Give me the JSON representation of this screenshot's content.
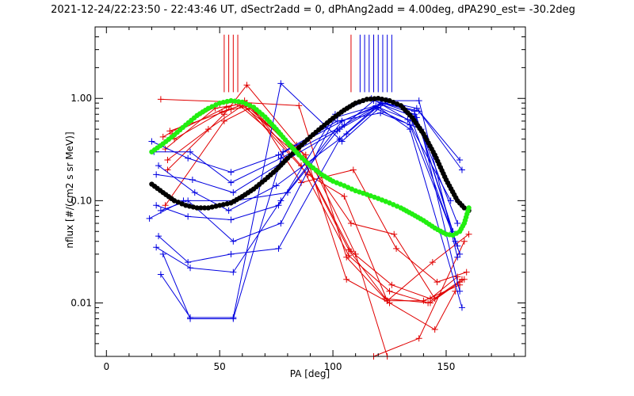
{
  "chart_data": {
    "type": "line",
    "title": "2021-12-24/22:23:50 - 22:43:46 UT, dSectr2add = 0, dPhAng2add = 4.00deg, dPA290_est= -30.2deg",
    "xlabel": "PA [deg]",
    "ylabel": "nflux [#/(cm2 s sr MeV)]",
    "xlim": [
      -5,
      185
    ],
    "ylim": [
      0.003,
      5.0
    ],
    "yscale": "log",
    "x_ticks": [
      0,
      50,
      100,
      150
    ],
    "x_tick_labels": [
      "0",
      "50",
      "100",
      "150"
    ],
    "y_ticks": [
      0.01,
      0.1,
      1.0
    ],
    "y_tick_labels": [
      "0.01",
      "0.10",
      "1.00"
    ],
    "grid": false,
    "colors": {
      "red": "#e00000",
      "blue": "#0000e0",
      "green": "#22ee11",
      "black": "#000000",
      "axes": "#000000"
    },
    "ref_lines": {
      "red": [
        52,
        54,
        56,
        58,
        108,
        118
      ],
      "blue": [
        112,
        114,
        116,
        118,
        120,
        122,
        124,
        126
      ],
      "y_from": 1.15,
      "y_to": 4.2
    },
    "red_series": [
      {
        "x": [
          24,
          57,
          85,
          106,
          123,
          143,
          156
        ],
        "y": [
          0.98,
          0.92,
          0.85,
          0.028,
          0.011,
          0.01,
          0.016
        ]
      },
      {
        "x": [
          25,
          50,
          61,
          86,
          107,
          125,
          142,
          157
        ],
        "y": [
          0.42,
          0.88,
          0.95,
          0.22,
          0.029,
          0.013,
          0.01,
          0.017
        ]
      },
      {
        "x": [
          26,
          48,
          62,
          87,
          108,
          126,
          143,
          155
        ],
        "y": [
          0.32,
          0.8,
          0.9,
          0.25,
          0.032,
          0.015,
          0.011,
          0.018
        ]
      },
      {
        "x": [
          27,
          45,
          60,
          88,
          106,
          125,
          145,
          154
        ],
        "y": [
          0.25,
          0.5,
          0.85,
          0.28,
          0.017,
          0.01,
          0.0055,
          0.013
        ]
      },
      {
        "x": [
          26,
          52,
          63,
          85,
          107,
          124,
          140,
          156
        ],
        "y": [
          0.09,
          0.6,
          0.8,
          0.3,
          0.033,
          0.0105,
          0.0105,
          0.015
        ]
      },
      {
        "x": [
          27,
          52,
          62,
          84,
          108,
          127,
          145,
          158
        ],
        "y": [
          0.2,
          0.7,
          1.35,
          0.35,
          0.06,
          0.047,
          0.011,
          0.017
        ]
      },
      {
        "x": [
          28,
          55,
          64,
          86,
          109,
          128,
          146,
          159
        ],
        "y": [
          0.48,
          0.78,
          0.85,
          0.15,
          0.2,
          0.034,
          0.016,
          0.02
        ]
      },
      {
        "x": [
          29,
          53,
          60,
          89,
          105,
          124,
          144,
          160
        ],
        "y": [
          0.45,
          0.82,
          0.9,
          0.18,
          0.11,
          0.0105,
          0.025,
          0.047
        ]
      },
      {
        "x": [
          30,
          51,
          59,
          92,
          110,
          124
        ],
        "y": [
          0.4,
          0.74,
          0.85,
          0.2,
          0.03,
          0.003
        ]
      },
      {
        "x": [
          118,
          138,
          158
        ],
        "y": [
          0.003,
          0.0045,
          0.04
        ]
      }
    ],
    "blue_series": [
      {
        "x": [
          20,
          36,
          55,
          76,
          104,
          122,
          136,
          155
        ],
        "y": [
          0.38,
          0.26,
          0.19,
          0.28,
          0.6,
          0.9,
          0.7,
          0.06
        ]
      },
      {
        "x": [
          21,
          37,
          55,
          77,
          105,
          121,
          137,
          153
        ],
        "y": [
          0.3,
          0.3,
          0.15,
          0.26,
          0.55,
          0.88,
          0.65,
          0.05
        ]
      },
      {
        "x": [
          22,
          38,
          56,
          78,
          103,
          120,
          135,
          154
        ],
        "y": [
          0.18,
          0.16,
          0.12,
          0.24,
          0.5,
          0.82,
          0.6,
          0.04
        ]
      },
      {
        "x": [
          23,
          39,
          54,
          75,
          106,
          119,
          134,
          155
        ],
        "y": [
          0.22,
          0.12,
          0.08,
          0.14,
          0.45,
          0.8,
          0.55,
          0.036
        ]
      },
      {
        "x": [
          19,
          34,
          57,
          80,
          102,
          118,
          136,
          156
        ],
        "y": [
          0.067,
          0.1,
          0.1,
          0.12,
          0.48,
          0.95,
          0.75,
          0.03
        ]
      },
      {
        "x": [
          22,
          36,
          55,
          76,
          101,
          117,
          133,
          152
        ],
        "y": [
          0.09,
          0.07,
          0.065,
          0.09,
          0.7,
          1.0,
          0.62,
          0.1
        ]
      },
      {
        "x": [
          23,
          36,
          55,
          76,
          103,
          122,
          137,
          157
        ],
        "y": [
          0.045,
          0.025,
          0.03,
          0.034,
          0.4,
          0.95,
          0.8,
          0.2
        ]
      },
      {
        "x": [
          22,
          37,
          56,
          77,
          104,
          123,
          138,
          156
        ],
        "y": [
          0.035,
          0.022,
          0.02,
          0.1,
          0.6,
          0.9,
          0.75,
          0.25
        ]
      },
      {
        "x": [
          24,
          37,
          56,
          77,
          104,
          124,
          138,
          155
        ],
        "y": [
          0.019,
          0.0072,
          0.0072,
          1.4,
          0.38,
          0.95,
          0.95,
          0.028
        ]
      },
      {
        "x": [
          25,
          37,
          56,
          78,
          102,
          121,
          139,
          156
        ],
        "y": [
          0.03,
          0.007,
          0.007,
          0.3,
          0.6,
          0.72,
          0.5,
          0.013
        ]
      },
      {
        "x": [
          24,
          36,
          56,
          77,
          101,
          119,
          134,
          157
        ],
        "y": [
          0.08,
          0.1,
          0.04,
          0.06,
          0.65,
          0.85,
          0.5,
          0.009
        ]
      }
    ],
    "black_curve": {
      "x": [
        20,
        25,
        30,
        35,
        40,
        45,
        50,
        55,
        60,
        65,
        70,
        75,
        80,
        85,
        90,
        95,
        100,
        105,
        110,
        115,
        120,
        125,
        130,
        135,
        140,
        145,
        150,
        155,
        158,
        160
      ],
      "y": [
        0.145,
        0.12,
        0.1,
        0.09,
        0.085,
        0.085,
        0.09,
        0.095,
        0.11,
        0.13,
        0.16,
        0.2,
        0.26,
        0.33,
        0.42,
        0.52,
        0.64,
        0.77,
        0.9,
        0.98,
        1.0,
        0.95,
        0.85,
        0.65,
        0.45,
        0.28,
        0.16,
        0.1,
        0.085,
        0.08
      ]
    },
    "green_curve": {
      "x": [
        20,
        25,
        30,
        35,
        40,
        45,
        50,
        55,
        60,
        65,
        70,
        75,
        80,
        85,
        90,
        95,
        100,
        105,
        110,
        115,
        120,
        125,
        130,
        135,
        140,
        145,
        150,
        153,
        156,
        158,
        160
      ],
      "y": [
        0.3,
        0.36,
        0.44,
        0.55,
        0.68,
        0.8,
        0.9,
        0.95,
        0.92,
        0.82,
        0.66,
        0.5,
        0.37,
        0.28,
        0.22,
        0.18,
        0.155,
        0.14,
        0.125,
        0.115,
        0.105,
        0.095,
        0.085,
        0.074,
        0.064,
        0.054,
        0.047,
        0.046,
        0.05,
        0.06,
        0.085
      ]
    }
  }
}
